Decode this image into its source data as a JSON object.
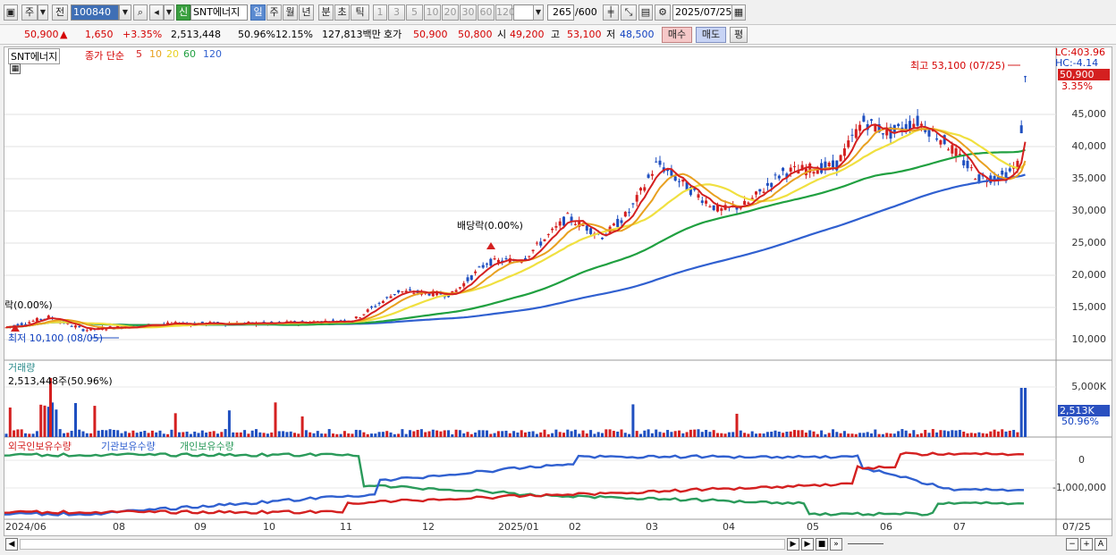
{
  "toolbar": {
    "period_main": "주",
    "period_prev": "전",
    "code": "100840",
    "market_badge": "신",
    "stock_name": "SNT에너지",
    "periods": [
      "일",
      "주",
      "월",
      "년",
      "분",
      "초",
      "틱"
    ],
    "selected_period": "일",
    "nums": [
      "1",
      "3",
      "5",
      "10",
      "20",
      "30",
      "60",
      "120"
    ],
    "count": "265",
    "count_total": "/600",
    "date": "2025/07/25"
  },
  "quote": {
    "price": "50,900",
    "arrow": "▲",
    "change": "1,650",
    "change_pct": "+3.35%",
    "volume": "2,513,448",
    "vol_ratio": "50.96%",
    "turnover": "12.15%",
    "amount": "127,813백만",
    "ask_label": "호가",
    "ask": "50,900",
    "bid": "50,800",
    "open_label": "시",
    "open": "49,200",
    "high_label": "고",
    "high": "53,100",
    "low_label": "저",
    "low": "48,500",
    "buy": "매수",
    "sell": "매도",
    "eval": "평"
  },
  "price_pane": {
    "legend_name": "SNT에너지",
    "legend_ma": "종가 단순",
    "ma_labels": [
      "5",
      "10",
      "20",
      "60",
      "120"
    ],
    "ma_colors": [
      "#d42020",
      "#e8a020",
      "#f0e040",
      "#20a040",
      "#3060d0"
    ],
    "lc": "LC:403.96",
    "hc": "HC:-4.14",
    "last_price": "50,900",
    "last_pct": "3.35%",
    "y_ticks": [
      "45,000",
      "40,000",
      "35,000",
      "30,000",
      "25,000",
      "20,000",
      "15,000",
      "10,000"
    ],
    "high_note": "최고 53,100 (07/25)",
    "low_note": "최저 10,100 (08/05)",
    "div1": "배당락(0.00%)",
    "div0": "락(0.00%)"
  },
  "volume_pane": {
    "title": "거래량",
    "value": "2,513,448주(50.96%)",
    "y_tick": "5,000K",
    "tag_value": "2,513K",
    "tag_pct": "50.96%"
  },
  "holding_pane": {
    "legend": [
      "외국인보유수량",
      "기관보유수량",
      "개인보유수량"
    ],
    "legend_colors": [
      "#d42020",
      "#3060d0",
      "#2a9a5a"
    ],
    "y_ticks": [
      "0",
      "-1,000,000"
    ]
  },
  "x_axis": [
    "2024/06",
    "08",
    "09",
    "10",
    "11",
    "12",
    "2025/01",
    "02",
    "03",
    "04",
    "05",
    "06",
    "07"
  ],
  "x_right": "07/25"
}
